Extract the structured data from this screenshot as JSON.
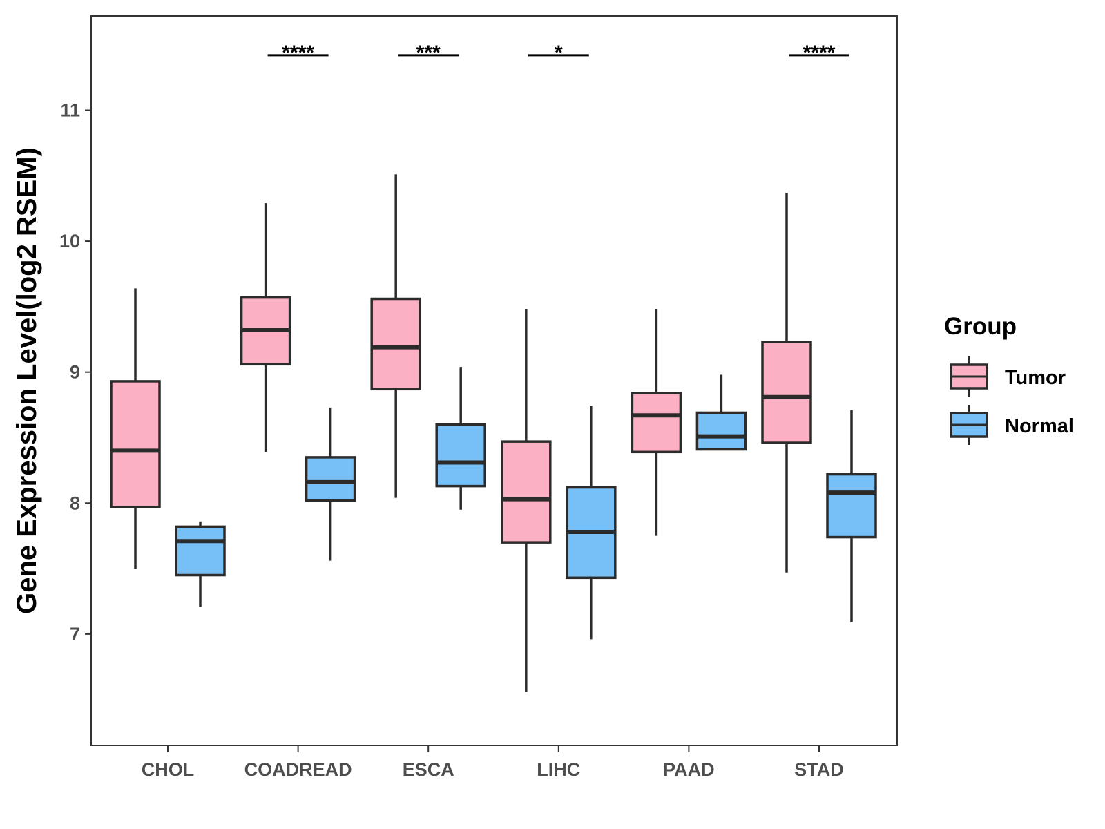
{
  "chart_data": {
    "type": "boxplot",
    "title": "",
    "xlabel": "",
    "ylabel": "Gene Expression Level(log2 RSEM)",
    "ylim": [
      6.15,
      11.72
    ],
    "yticks": [
      7,
      8,
      9,
      10,
      11
    ],
    "ytick_labels": [
      "7",
      "8",
      "9",
      "10",
      "11"
    ],
    "grid": false,
    "legend": {
      "title": "Group",
      "placement": "right",
      "entries": [
        {
          "name": "Tumor",
          "color": "#FBB1C3"
        },
        {
          "name": "Normal",
          "color": "#77C0F7"
        }
      ]
    },
    "categories": [
      "CHOL",
      "COADREAD",
      "ESCA",
      "LIHC",
      "PAAD",
      "STAD"
    ],
    "series": [
      {
        "name": "Tumor",
        "color": "#FBB1C3",
        "boxes": [
          {
            "min": 7.5,
            "q1": 7.97,
            "median": 8.4,
            "q3": 8.93,
            "max": 9.64
          },
          {
            "min": 8.39,
            "q1": 9.06,
            "median": 9.32,
            "q3": 9.57,
            "max": 10.29
          },
          {
            "min": 8.04,
            "q1": 8.87,
            "median": 9.19,
            "q3": 9.56,
            "max": 10.51
          },
          {
            "min": 6.56,
            "q1": 7.7,
            "median": 8.03,
            "q3": 8.47,
            "max": 9.48
          },
          {
            "min": 7.75,
            "q1": 8.39,
            "median": 8.67,
            "q3": 8.84,
            "max": 9.48
          },
          {
            "min": 7.47,
            "q1": 8.46,
            "median": 8.81,
            "q3": 9.23,
            "max": 10.37
          }
        ]
      },
      {
        "name": "Normal",
        "color": "#77C0F7",
        "boxes": [
          {
            "min": 7.21,
            "q1": 7.45,
            "median": 7.71,
            "q3": 7.82,
            "max": 7.86
          },
          {
            "min": 7.56,
            "q1": 8.02,
            "median": 8.16,
            "q3": 8.35,
            "max": 8.73
          },
          {
            "min": 7.95,
            "q1": 8.13,
            "median": 8.31,
            "q3": 8.6,
            "max": 9.04
          },
          {
            "min": 6.96,
            "q1": 7.43,
            "median": 7.78,
            "q3": 8.12,
            "max": 8.74
          },
          {
            "min": 8.41,
            "q1": 8.41,
            "median": 8.51,
            "q3": 8.69,
            "max": 8.98
          },
          {
            "min": 7.09,
            "q1": 7.74,
            "median": 8.08,
            "q3": 8.22,
            "max": 8.71
          }
        ]
      }
    ],
    "annotations": [
      {
        "category": "COADREAD",
        "label": "****",
        "y": 11.42
      },
      {
        "category": "ESCA",
        "label": "***",
        "y": 11.42
      },
      {
        "category": "LIHC",
        "label": "*",
        "y": 11.42
      },
      {
        "category": "STAD",
        "label": "****",
        "y": 11.42
      }
    ]
  }
}
